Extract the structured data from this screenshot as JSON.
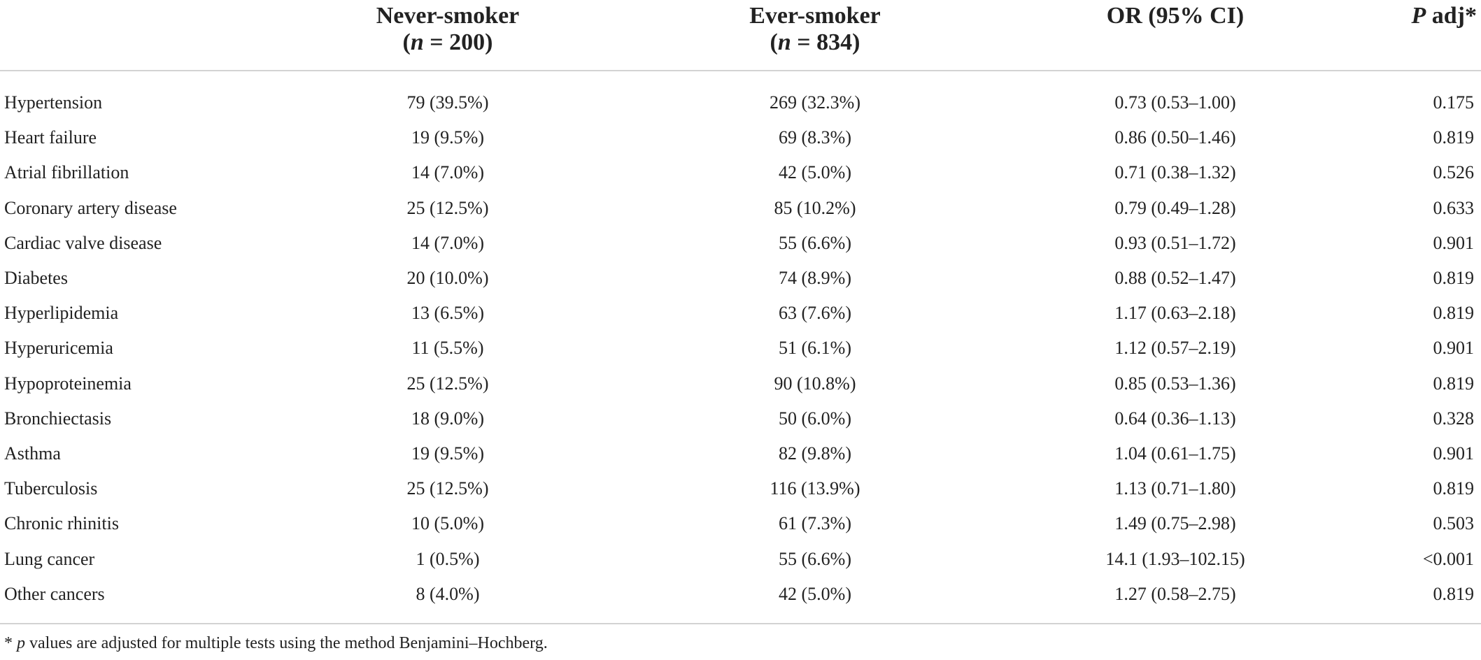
{
  "table": {
    "header": {
      "never_smoker": "Never-smoker",
      "never_n_prefix": "n",
      "never_n_value": " = 200",
      "ever_smoker": "Ever-smoker",
      "ever_n_prefix": "n",
      "ever_n_value": " = 834",
      "or_ci": "OR (95% CI)",
      "p_adj_italic": "P",
      "p_adj_rest": " adj*"
    },
    "rows": [
      {
        "label": "Hypertension",
        "never": "79 (39.5%)",
        "ever": "269 (32.3%)",
        "or": "0.73 (0.53–1.00)",
        "p": "0.175"
      },
      {
        "label": "Heart failure",
        "never": "19 (9.5%)",
        "ever": "69 (8.3%)",
        "or": "0.86 (0.50–1.46)",
        "p": "0.819"
      },
      {
        "label": "Atrial fibrillation",
        "never": "14 (7.0%)",
        "ever": "42 (5.0%)",
        "or": "0.71 (0.38–1.32)",
        "p": "0.526"
      },
      {
        "label": "Coronary artery disease",
        "never": "25 (12.5%)",
        "ever": "85 (10.2%)",
        "or": "0.79 (0.49–1.28)",
        "p": "0.633"
      },
      {
        "label": "Cardiac valve disease",
        "never": "14 (7.0%)",
        "ever": "55 (6.6%)",
        "or": "0.93 (0.51–1.72)",
        "p": "0.901"
      },
      {
        "label": "Diabetes",
        "never": "20 (10.0%)",
        "ever": "74 (8.9%)",
        "or": "0.88 (0.52–1.47)",
        "p": "0.819"
      },
      {
        "label": "Hyperlipidemia",
        "never": "13 (6.5%)",
        "ever": "63 (7.6%)",
        "or": "1.17 (0.63–2.18)",
        "p": "0.819"
      },
      {
        "label": "Hyperuricemia",
        "never": "11 (5.5%)",
        "ever": "51 (6.1%)",
        "or": "1.12 (0.57–2.19)",
        "p": "0.901"
      },
      {
        "label": "Hypoproteinemia",
        "never": "25 (12.5%)",
        "ever": "90 (10.8%)",
        "or": "0.85 (0.53–1.36)",
        "p": "0.819"
      },
      {
        "label": "Bronchiectasis",
        "never": "18 (9.0%)",
        "ever": "50 (6.0%)",
        "or": "0.64 (0.36–1.13)",
        "p": "0.328"
      },
      {
        "label": "Asthma",
        "never": "19 (9.5%)",
        "ever": "82 (9.8%)",
        "or": "1.04 (0.61–1.75)",
        "p": "0.901"
      },
      {
        "label": "Tuberculosis",
        "never": "25 (12.5%)",
        "ever": "116 (13.9%)",
        "or": "1.13 (0.71–1.80)",
        "p": "0.819"
      },
      {
        "label": "Chronic rhinitis",
        "never": "10 (5.0%)",
        "ever": "61 (7.3%)",
        "or": "1.49 (0.75–2.98)",
        "p": "0.503"
      },
      {
        "label": "Lung cancer",
        "never": "1 (0.5%)",
        "ever": "55 (6.6%)",
        "or": "14.1 (1.93–102.15)",
        "p": "<0.001"
      },
      {
        "label": "Other cancers",
        "never": "8 (4.0%)",
        "ever": "42 (5.0%)",
        "or": "1.27 (0.58–2.75)",
        "p": "0.819"
      }
    ]
  },
  "footnote": {
    "marker": "* ",
    "italic": "p",
    "text": " values are adjusted for multiple tests using the method Benjamini–Hochberg."
  }
}
